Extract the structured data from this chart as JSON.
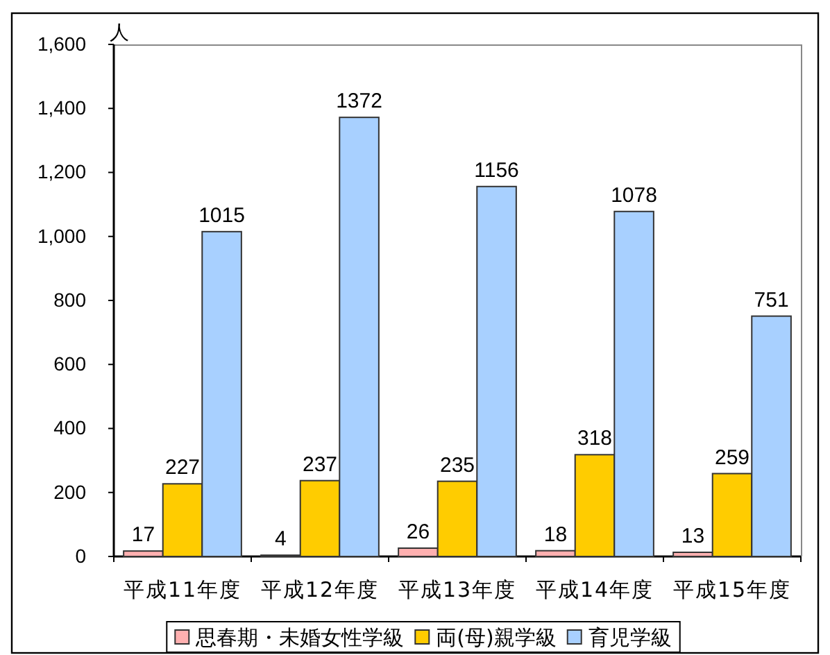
{
  "chart_data": {
    "type": "bar",
    "ylabel": "人",
    "categories": [
      "平成11年度",
      "平成12年度",
      "平成13年度",
      "平成14年度",
      "平成15年度"
    ],
    "series": [
      {
        "name": "思春期・未婚女性学級",
        "color": "#ffb0b0",
        "values": [
          17,
          4,
          26,
          18,
          13
        ]
      },
      {
        "name": "両(母)親学級",
        "color": "#ffcc00",
        "values": [
          227,
          237,
          235,
          318,
          259
        ]
      },
      {
        "name": "育児学級",
        "color": "#a8d0ff",
        "values": [
          1015,
          1372,
          1156,
          1078,
          751
        ]
      }
    ],
    "ylim": [
      0,
      1600
    ],
    "yticks": [
      0,
      200,
      400,
      600,
      800,
      {
        "value": 1000,
        "label": "1,000"
      },
      {
        "value": 1200,
        "label": "1,200"
      },
      {
        "value": 1400,
        "label": "1,400"
      },
      {
        "value": 1600,
        "label": "1,600"
      }
    ],
    "data_labels": true,
    "legend": "bottom"
  }
}
